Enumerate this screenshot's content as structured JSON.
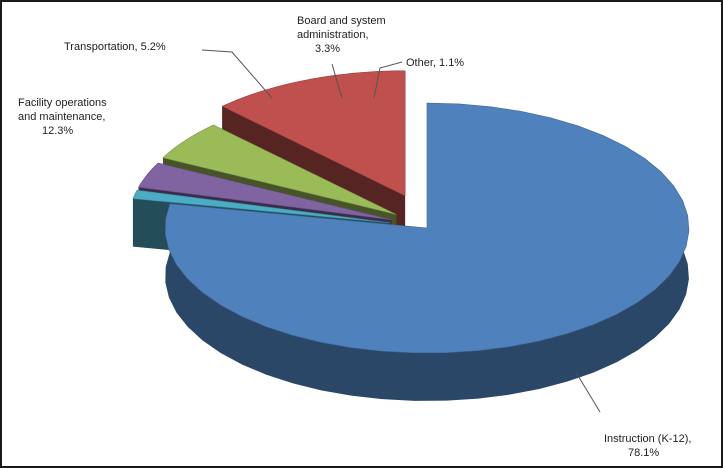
{
  "chart_data": {
    "type": "pie",
    "title": "",
    "slices": [
      {
        "label": "Instruction (K-12), 78.1%",
        "value": 78.1,
        "color": "#4f81bd"
      },
      {
        "label": "Other, 1.1%",
        "value": 1.1,
        "color": "#4bacc6"
      },
      {
        "label": "Board and system administration, 3.3%",
        "value": 3.3,
        "color": "#8064a2"
      },
      {
        "label": "Transportation, 5.2%",
        "value": 5.2,
        "color": "#9bbb59"
      },
      {
        "label": "Facility operations and maintenance, 12.3%",
        "value": 12.3,
        "color": "#c0504d"
      }
    ]
  },
  "labels": {
    "instruction": [
      "Instruction (K-12),",
      "78.1%"
    ],
    "other": [
      "Other, 1.1%"
    ],
    "board": [
      "Board and system",
      "administration,",
      "3.3%"
    ],
    "transportation": [
      "Transportation, 5.2%"
    ],
    "facility": [
      "Facility operations",
      "and maintenance,",
      "12.3%"
    ]
  }
}
